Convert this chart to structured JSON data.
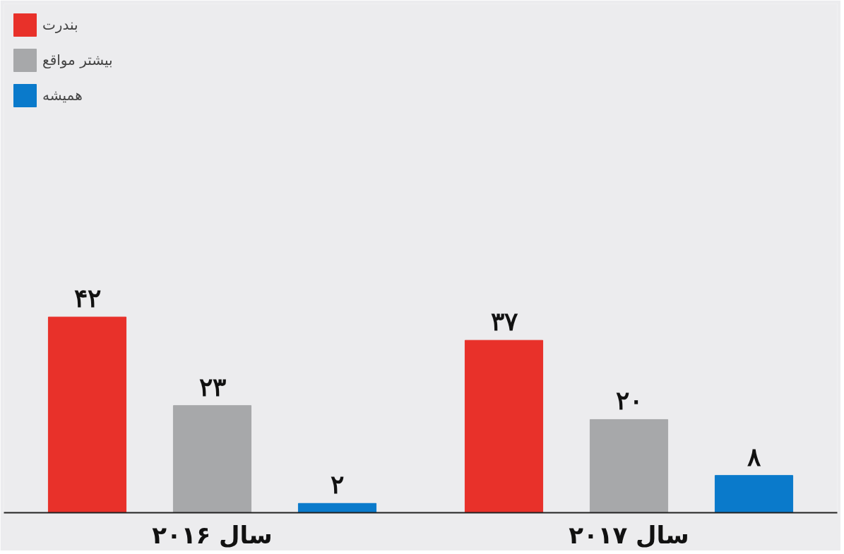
{
  "chart_data": {
    "type": "bar",
    "categories": [
      "سال ۲۰۱۶",
      "سال ۲۰۱۷"
    ],
    "series": [
      {
        "name": "بندرت",
        "color": "#e8312a",
        "values": [
          42,
          37
        ],
        "value_labels": [
          "۴۲",
          "۳۷"
        ]
      },
      {
        "name": "بیشتر مواقع",
        "color": "#a7a8aa",
        "values": [
          23,
          20
        ],
        "value_labels": [
          "۲۳",
          "۲۰"
        ]
      },
      {
        "name": "همیشه",
        "color": "#0a7acb",
        "values": [
          2,
          8
        ],
        "value_labels": [
          "۲",
          "۸"
        ]
      }
    ],
    "legend": "top left",
    "grid": false
  }
}
